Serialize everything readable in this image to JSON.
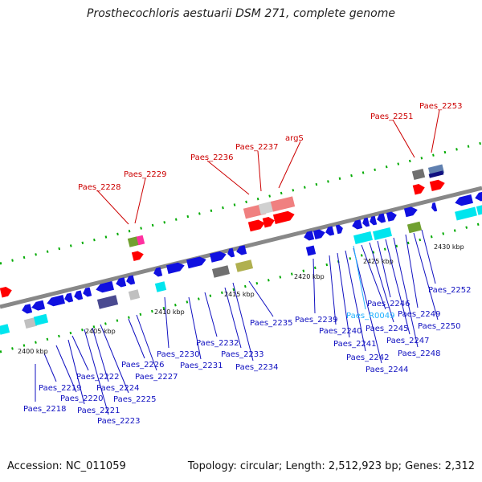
{
  "title": "Prosthecochloris aestuarii DSM 271, complete genome",
  "footer": {
    "accession": "Accession: NC_011059",
    "summary": "Topology: circular; Length: 2,512,923 bp; Genes: 2,312"
  },
  "scale_labels": [
    "2400 kbp",
    "2405 kbp",
    "2410 kbp",
    "2415 kbp",
    "2420 kbp",
    "2425 kbp",
    "2430 kbp"
  ],
  "colors": {
    "backbone": "#888888",
    "forward_gene": "#1010e0",
    "rna": "#00e5ee",
    "highlight": "#ff0000",
    "highlight_light": "#f08080",
    "label_blue": "#1010c0",
    "label_red": "#cc0000",
    "label_cyan": "#20b0ff"
  },
  "top_labels": [
    "Paes_2228",
    "Paes_2229",
    "Paes_2236",
    "Paes_2237",
    "argS",
    "Paes_2251",
    "Paes_2253"
  ],
  "bottom_labels": [
    "Paes_2218",
    "Paes_2219",
    "Paes_2220",
    "Paes_2221",
    "Paes_2222",
    "Paes_2223",
    "Paes_2224",
    "Paes_2225",
    "Paes_2226",
    "Paes_2227",
    "Paes_2230",
    "Paes_2231",
    "Paes_2232",
    "Paes_2233",
    "Paes_2234",
    "Paes_2235",
    "Paes_2239",
    "Paes_2240",
    "Paes_2241",
    "Paes_2242",
    "Paes_2244",
    "Paes_R0049",
    "Paes_2245",
    "Paes_2246",
    "Paes_2247",
    "Paes_2248",
    "Paes_2249",
    "Paes_2250",
    "Paes_2252"
  ]
}
